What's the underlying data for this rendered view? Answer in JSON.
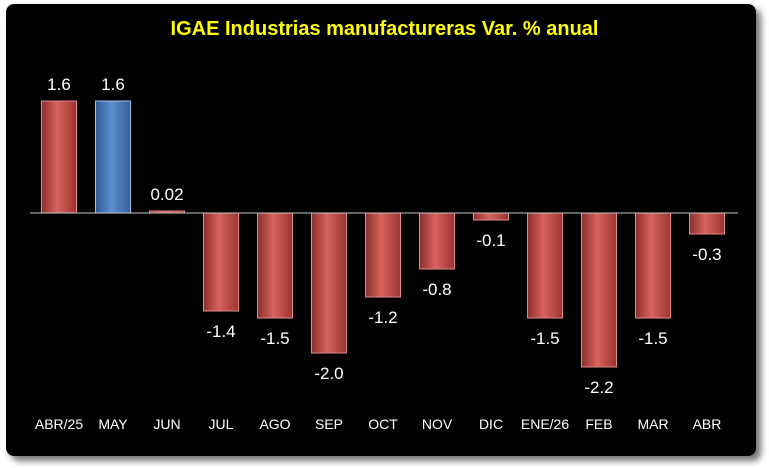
{
  "chart_data": {
    "type": "bar",
    "title": "IGAE  Industrias manufactureras Var. % anual",
    "xlabel": "",
    "ylabel": "",
    "categories": [
      "ABR/25",
      "MAY",
      "JUN",
      "JUL",
      "AGO",
      "SEP",
      "OCT",
      "NOV",
      "DIC",
      "ENE/26",
      "FEB",
      "MAR",
      "ABR"
    ],
    "values": [
      1.6,
      1.6,
      0.02,
      -1.4,
      -1.5,
      -2.0,
      -1.2,
      -0.8,
      -0.1,
      -1.5,
      -2.2,
      -1.5,
      -0.3
    ],
    "value_labels": [
      "1.6",
      "1.6",
      "0.02",
      "-1.4",
      "-1.5",
      "-2.0",
      "-1.2",
      "-0.8",
      "-0.1",
      "-1.5",
      "-2.2",
      "-1.5",
      "-0.3"
    ],
    "highlight_index": 1,
    "colors": {
      "bar": "#c0504d",
      "highlight": "#4f81bd",
      "background": "#000000",
      "title": "#ffff00",
      "text": "#ffffff"
    },
    "grid": false,
    "legend": "none"
  }
}
